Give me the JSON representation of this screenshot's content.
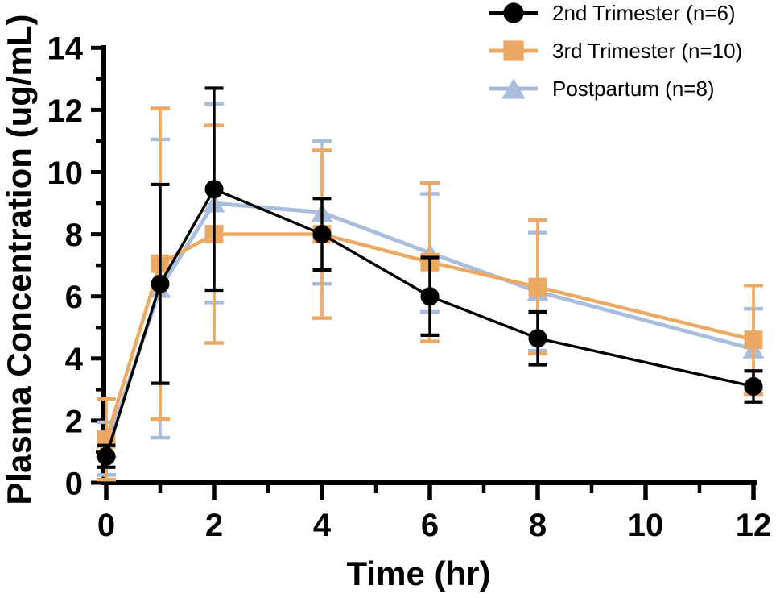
{
  "figure": {
    "background": "#ffffff"
  },
  "chart_data": {
    "type": "line",
    "title": "",
    "xlabel": "Time (hr)",
    "ylabel": "Plasma Concentration (ug/mL)",
    "xlim": [
      0,
      12
    ],
    "ylim": [
      0,
      14
    ],
    "x_major_ticks": [
      0,
      2,
      4,
      6,
      8,
      10,
      12
    ],
    "x_minor_ticks": [
      1,
      3,
      5,
      7,
      9,
      11
    ],
    "y_major_ticks": [
      0,
      2,
      4,
      6,
      8,
      10,
      12,
      14
    ],
    "y_minor_ticks": [
      1,
      3,
      5,
      7,
      9,
      11,
      13
    ],
    "grid": false,
    "legend_position": "top-right",
    "error_bars": "symmetric-sd",
    "x": [
      0,
      1,
      2,
      4,
      6,
      8,
      12
    ],
    "series": [
      {
        "name": "2nd Trimester (n=6)",
        "marker": "circle",
        "color": "#000000",
        "values": [
          0.85,
          6.4,
          9.45,
          8.0,
          6.0,
          4.65,
          3.1
        ],
        "errors": [
          0.35,
          3.2,
          3.25,
          1.15,
          1.25,
          0.85,
          0.5
        ]
      },
      {
        "name": "3rd Trimester (n=10)",
        "marker": "square",
        "color": "#EBA963",
        "values": [
          1.4,
          7.05,
          8.0,
          8.0,
          7.1,
          6.3,
          4.6
        ],
        "errors": [
          1.3,
          5.0,
          3.5,
          2.7,
          2.55,
          2.15,
          1.75
        ]
      },
      {
        "name": "Postpartum (n=8)",
        "marker": "triangle",
        "color": "#A9BDDC",
        "values": [
          1.1,
          6.25,
          9.0,
          8.7,
          7.4,
          6.15,
          4.3
        ],
        "errors": [
          0.85,
          4.8,
          3.2,
          2.3,
          1.9,
          1.9,
          1.3
        ]
      }
    ]
  }
}
